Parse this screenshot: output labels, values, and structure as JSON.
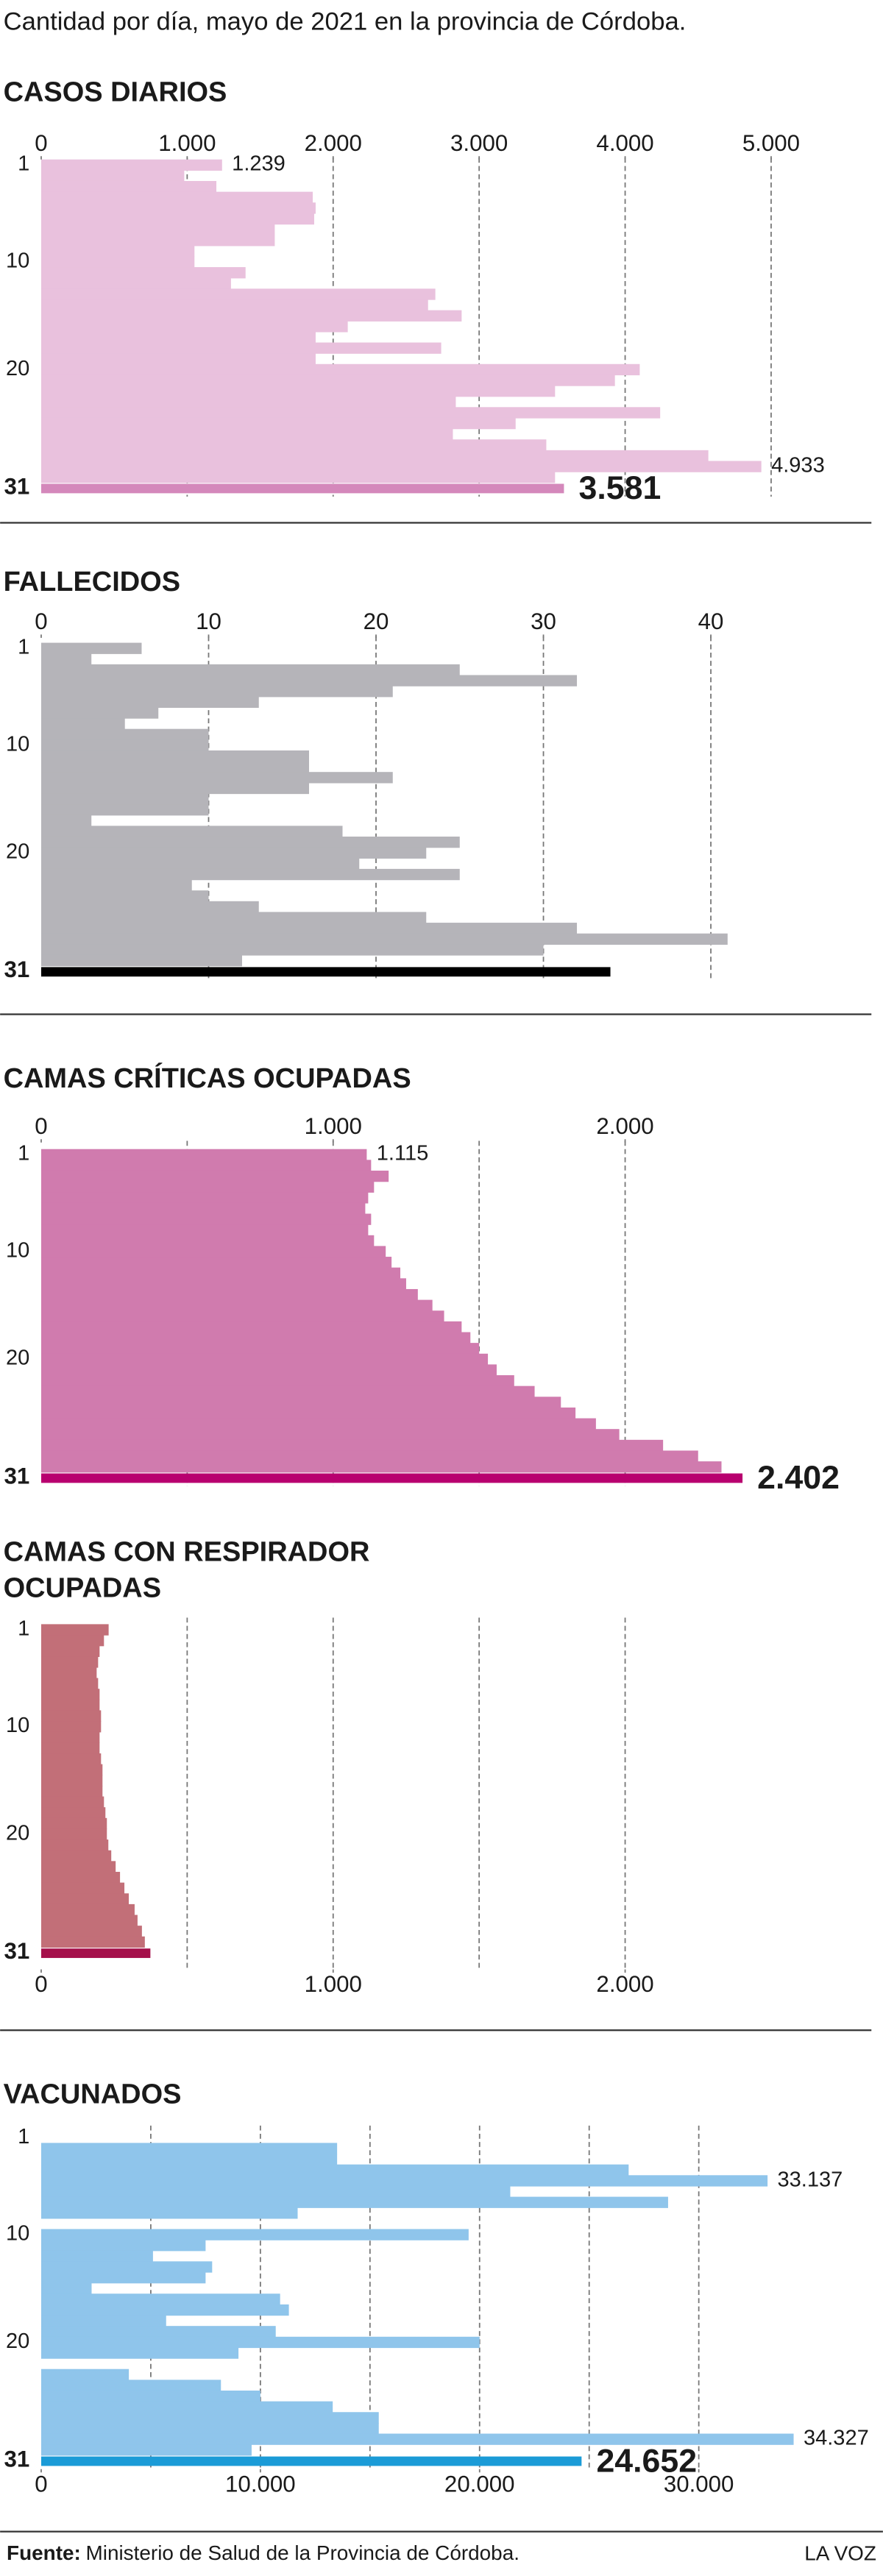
{
  "header": {
    "subtitle": "Cantidad por día, mayo de 2021 en la provincia de Córdoba."
  },
  "chart_data": [
    {
      "type": "bar",
      "orientation": "horizontal",
      "title": "CASOS DIARIOS",
      "tick_position": "top",
      "categories": [
        "1",
        null,
        null,
        null,
        null,
        null,
        null,
        null,
        null,
        "10",
        null,
        null,
        null,
        null,
        null,
        null,
        null,
        null,
        null,
        "20",
        null,
        null,
        null,
        null,
        null,
        null,
        null,
        null,
        null,
        null,
        "31"
      ],
      "values": [
        1239,
        980,
        1200,
        1860,
        1880,
        1870,
        1600,
        1600,
        1050,
        1050,
        1400,
        1300,
        2700,
        2650,
        2880,
        2100,
        1880,
        2740,
        1880,
        4100,
        3930,
        3520,
        2840,
        4240,
        3250,
        2820,
        3460,
        4570,
        4933,
        3520,
        3581
      ],
      "value_labels": [
        "1.239",
        null,
        null,
        null,
        null,
        null,
        null,
        null,
        null,
        null,
        null,
        null,
        null,
        null,
        null,
        null,
        null,
        null,
        null,
        null,
        null,
        null,
        null,
        null,
        null,
        null,
        null,
        null,
        "4.933",
        null,
        "3.581"
      ],
      "color": "#e9c1dd",
      "highlight_color": "#d488bb",
      "xlim": [
        0,
        5000
      ],
      "xticks": [
        0,
        {
          "value": 1000,
          "label": "1.000"
        },
        {
          "value": 2000,
          "label": "2.000"
        },
        {
          "value": 3000,
          "label": "3.000"
        },
        {
          "value": 4000,
          "label": "4.000"
        },
        {
          "value": 5000,
          "label": "5.000"
        }
      ],
      "xgrid": [
        1000,
        2000,
        3000,
        4000,
        5000
      ]
    },
    {
      "type": "bar",
      "orientation": "horizontal",
      "title": "FALLECIDOS",
      "tick_position": "top",
      "categories": [
        "1",
        null,
        null,
        null,
        null,
        null,
        null,
        null,
        null,
        "10",
        null,
        null,
        null,
        null,
        null,
        null,
        null,
        null,
        null,
        "20",
        null,
        null,
        null,
        null,
        null,
        null,
        null,
        null,
        null,
        null,
        "31"
      ],
      "values": [
        6,
        3,
        25,
        32,
        21,
        13,
        7,
        5,
        10,
        10,
        16,
        16,
        21,
        16,
        10,
        10,
        3,
        18,
        25,
        23,
        19,
        25,
        9,
        10,
        13,
        23,
        32,
        41,
        30,
        12,
        34
      ],
      "value_labels": [
        null,
        null,
        null,
        null,
        null,
        null,
        null,
        null,
        null,
        null,
        null,
        null,
        null,
        null,
        null,
        null,
        null,
        null,
        null,
        null,
        null,
        null,
        null,
        null,
        null,
        null,
        null,
        null,
        null,
        null,
        null
      ],
      "color": "#b5b4b9",
      "highlight_color": "#000000",
      "xlim": [
        0,
        43.6
      ],
      "xticks": [
        0,
        10,
        20,
        30,
        40
      ],
      "xgrid": [
        10,
        20,
        30,
        40
      ]
    },
    {
      "type": "bar",
      "orientation": "horizontal",
      "title": "CAMAS CRÍTICAS OCUPADAS",
      "tick_position": "top",
      "categories": [
        "1",
        null,
        null,
        null,
        null,
        null,
        null,
        null,
        null,
        "10",
        null,
        null,
        null,
        null,
        null,
        null,
        null,
        null,
        null,
        "20",
        null,
        null,
        null,
        null,
        null,
        null,
        null,
        null,
        null,
        null,
        "31"
      ],
      "values": [
        1115,
        1130,
        1190,
        1140,
        1120,
        1110,
        1130,
        1120,
        1140,
        1180,
        1200,
        1230,
        1250,
        1290,
        1340,
        1380,
        1440,
        1470,
        1500,
        1530,
        1560,
        1620,
        1690,
        1780,
        1830,
        1900,
        1980,
        2130,
        2250,
        2330,
        2402
      ],
      "value_labels": [
        "1.115",
        null,
        null,
        null,
        null,
        null,
        null,
        null,
        null,
        null,
        null,
        null,
        null,
        null,
        null,
        null,
        null,
        null,
        null,
        null,
        null,
        null,
        null,
        null,
        null,
        null,
        null,
        null,
        null,
        null,
        "2.402"
      ],
      "color": "#d07bae",
      "highlight_color": "#b8006f",
      "xlim": [
        0,
        2500
      ],
      "xticks": [
        0,
        {
          "value": 1000,
          "label": "1.000"
        },
        {
          "value": 2000,
          "label": "2.000"
        }
      ],
      "xgrid": [
        500,
        1000,
        1500,
        2000
      ]
    },
    {
      "type": "bar",
      "orientation": "horizontal",
      "title": [
        "CAMAS CON RESPIRADOR",
        "OCUPADAS"
      ],
      "tick_position": "bottom",
      "categories": [
        "1",
        null,
        null,
        null,
        null,
        null,
        null,
        null,
        null,
        "10",
        null,
        null,
        null,
        null,
        null,
        null,
        null,
        null,
        null,
        "20",
        null,
        null,
        null,
        null,
        null,
        null,
        null,
        null,
        null,
        null,
        "31"
      ],
      "values": [
        231,
        215,
        200,
        195,
        190,
        195,
        200,
        200,
        205,
        205,
        200,
        200,
        205,
        210,
        210,
        210,
        215,
        220,
        225,
        225,
        230,
        240,
        255,
        270,
        285,
        300,
        320,
        330,
        345,
        355,
        374
      ],
      "value_labels": [
        null,
        null,
        null,
        null,
        null,
        null,
        null,
        null,
        null,
        null,
        null,
        null,
        null,
        null,
        null,
        null,
        null,
        null,
        null,
        null,
        null,
        null,
        null,
        null,
        null,
        null,
        null,
        null,
        null,
        null,
        null
      ],
      "color": "#c26f78",
      "highlight_color": "#a5104b",
      "xlim": [
        0,
        2500
      ],
      "xticks": [
        0,
        {
          "value": 1000,
          "label": "1.000"
        },
        {
          "value": 2000,
          "label": "2.000"
        }
      ],
      "xgrid": [
        500,
        1000,
        1500,
        2000
      ]
    },
    {
      "type": "bar",
      "orientation": "horizontal",
      "title": "VACUNADOS",
      "tick_position": "bottom",
      "categories": [
        "1",
        null,
        null,
        null,
        null,
        null,
        null,
        null,
        null,
        "10",
        null,
        null,
        null,
        null,
        null,
        null,
        null,
        null,
        null,
        "20",
        null,
        null,
        null,
        null,
        null,
        null,
        null,
        null,
        null,
        null,
        "31"
      ],
      "values": [
        0,
        13500,
        13500,
        26800,
        33137,
        21400,
        28600,
        11700,
        0,
        19500,
        7500,
        5100,
        7800,
        7500,
        2300,
        10900,
        11300,
        5700,
        10700,
        20000,
        9000,
        0,
        4000,
        8200,
        10000,
        13300,
        15400,
        15400,
        34327,
        9600,
        24652
      ],
      "value_labels": [
        null,
        null,
        null,
        null,
        "33.137",
        null,
        null,
        null,
        null,
        null,
        null,
        null,
        null,
        null,
        null,
        null,
        null,
        null,
        null,
        null,
        null,
        null,
        null,
        null,
        null,
        null,
        null,
        null,
        "34.327",
        null,
        "24.652"
      ],
      "color": "#8fc5eb",
      "highlight_color": "#1b9bd7",
      "xlim": [
        0,
        33300
      ],
      "xticks": [
        0,
        {
          "value": 10000,
          "label": "10.000"
        },
        {
          "value": 20000,
          "label": "20.000"
        },
        {
          "value": 30000,
          "label": "30.000"
        }
      ],
      "xgrid": [
        5000,
        10000,
        15000,
        20000,
        25000,
        30000
      ]
    }
  ],
  "footer": {
    "source_label": "Fuente:",
    "source_text": "Ministerio de Salud de la Provincia de Córdoba.",
    "brand": "LA VOZ"
  }
}
